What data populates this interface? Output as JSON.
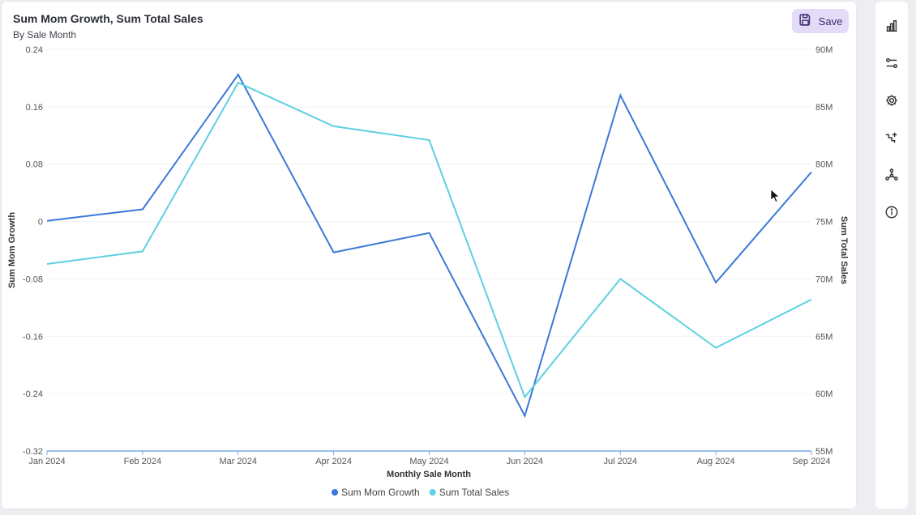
{
  "header": {
    "title": "Sum Mom Growth, Sum Total Sales",
    "subtitle": "By Sale Month",
    "save_label": "Save"
  },
  "sidebar": {
    "icons": [
      "bar-chart-icon",
      "sliders-icon",
      "gear-icon",
      "trend-icon",
      "network-icon",
      "info-icon"
    ]
  },
  "chart_data": {
    "type": "line",
    "title": "Sum Mom Growth, Sum Total Sales",
    "subtitle": "By Sale Month",
    "xlabel": "Monthly Sale Month",
    "ylabel_left": "Sum Mom Growth",
    "ylabel_right": "Sum Total Sales",
    "categories": [
      "Jan 2024",
      "Feb 2024",
      "Mar 2024",
      "Apr 2024",
      "May 2024",
      "Jun 2024",
      "Jul 2024",
      "Aug 2024",
      "Sep 2024"
    ],
    "y_left": {
      "ticks": [
        0.24,
        0.16,
        0.08,
        0,
        -0.08,
        -0.16,
        -0.24,
        -0.32
      ],
      "tick_labels": [
        "0.24",
        "0.16",
        "0.08",
        "0",
        "-0.08",
        "-0.16",
        "-0.24",
        "-0.32"
      ],
      "ylim": [
        -0.32,
        0.24
      ]
    },
    "y_right": {
      "ticks": [
        90000000,
        85000000,
        80000000,
        75000000,
        70000000,
        65000000,
        60000000,
        55000000
      ],
      "tick_labels": [
        "90M",
        "85M",
        "80M",
        "75M",
        "70M",
        "65M",
        "60M",
        "55M"
      ],
      "ylim": [
        55000000,
        90000000
      ]
    },
    "series": [
      {
        "name": "Sum Mom Growth",
        "axis": "left",
        "color": "#3b78d8",
        "values": [
          0.001,
          0.017,
          0.205,
          -0.043,
          -0.016,
          -0.271,
          0.176,
          -0.085,
          0.069
        ]
      },
      {
        "name": "Sum Total Sales",
        "axis": "right",
        "color": "#5dd0e2",
        "values": [
          71300000,
          72400000,
          87100000,
          83300000,
          82100000,
          59700000,
          70000000,
          64000000,
          68200000
        ]
      }
    ],
    "grid": true,
    "legend": "bottom-center"
  }
}
